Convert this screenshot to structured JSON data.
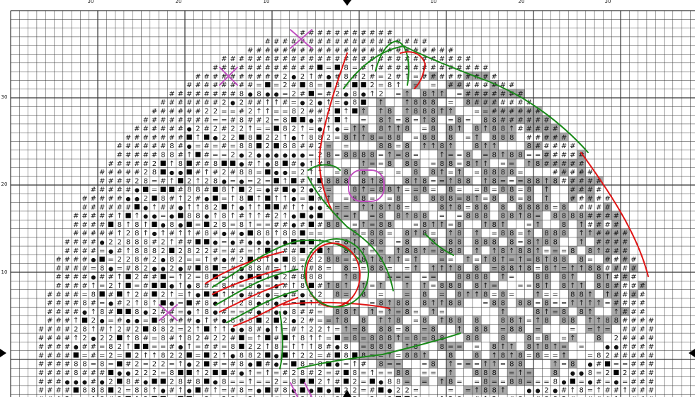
{
  "pattern": {
    "title": "",
    "top_ticks": [
      "30",
      "20",
      "10",
      "10",
      "20",
      "30"
    ],
    "left_ticks": [
      "30",
      "20",
      "10"
    ],
    "grid_cols": 80,
    "grid_rows": 45,
    "symbols": [
      "#",
      "●",
      "2",
      "=",
      "8",
      "↑",
      "■",
      "◈",
      "♥"
    ],
    "colors": {
      "outline_green": "#1a8a1a",
      "outline_red": "#e01515",
      "outline_purple": "#c050c0",
      "grid": "#333333",
      "shade": "#a8a8a8"
    }
  }
}
